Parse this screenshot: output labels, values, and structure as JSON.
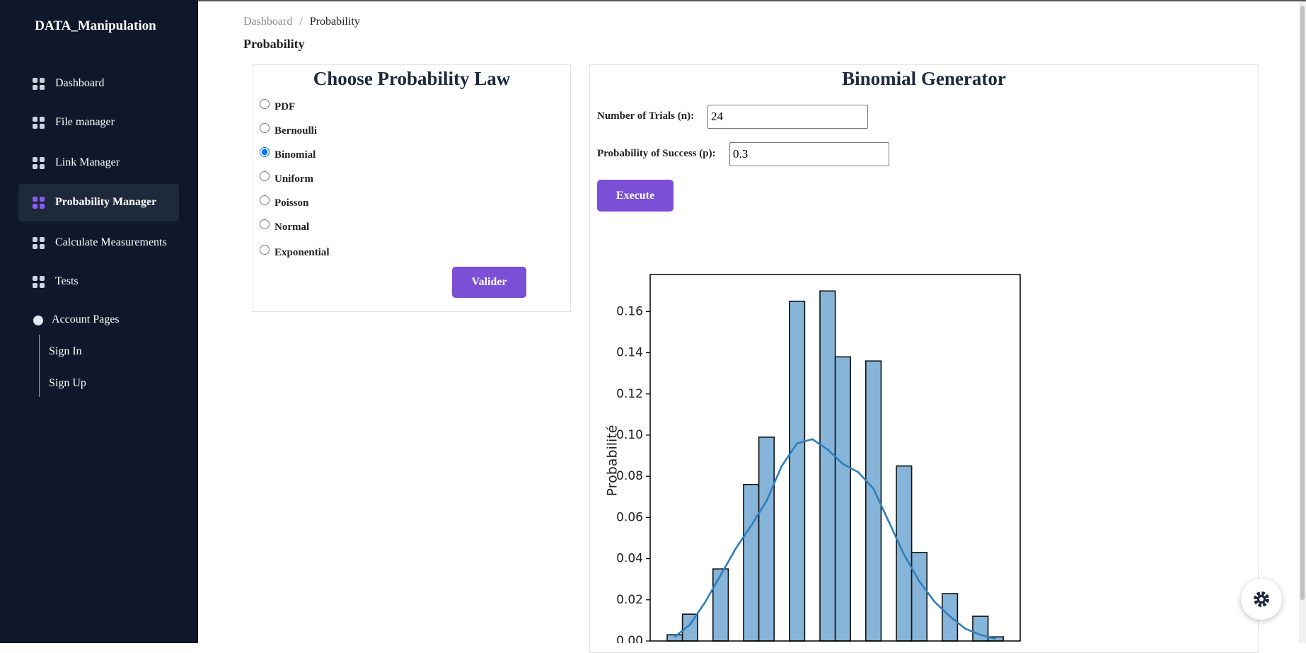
{
  "sidebar": {
    "brand": "DATA_Manipulation",
    "nav": [
      "Dashboard",
      "File manager",
      "Link Manager",
      "Probability Manager",
      "Calculate Measurements",
      "Tests"
    ],
    "active": 3,
    "account": {
      "title": "Account Pages",
      "items": [
        "Sign In",
        "Sign Up"
      ]
    }
  },
  "breadcrumb": [
    "Dashboard",
    "Probability"
  ],
  "page_title": "Probability",
  "law_card": {
    "title": "Choose Probability Law",
    "options": [
      "PDF",
      "Bernoulli",
      "Binomial",
      "Uniform",
      "Poisson",
      "Normal",
      "Exponential"
    ],
    "selected": 2,
    "button": "Valider"
  },
  "generator": {
    "title": "Binomial Generator",
    "fields": [
      {
        "label": "Number of Trials (n):",
        "value": "24"
      },
      {
        "label": "Probability of Success (p):",
        "value": "0.3"
      }
    ],
    "button": "Execute"
  },
  "chart_data": {
    "type": "histogram",
    "ylabel": "Probabilité",
    "values": [
      0.003,
      0.013,
      0,
      0.035,
      0,
      0.076,
      0.099,
      0,
      0.165,
      0,
      0.17,
      0.138,
      0,
      0.136,
      0,
      0.085,
      0.043,
      0,
      0.023,
      0,
      0.012,
      0.002
    ],
    "kde_values": [
      0.002,
      0.008,
      0.019,
      0.032,
      0.045,
      0.056,
      0.068,
      0.085,
      0.096,
      0.098,
      0.093,
      0.086,
      0.082,
      0.074,
      0.058,
      0.042,
      0.029,
      0.019,
      0.012,
      0.006,
      0.003,
      0.001
    ],
    "color": "#86b5d9",
    "line_color": "#2e7ebc",
    "ylim": [
      0,
      0.178
    ],
    "yticks": [
      {
        "value": 0,
        "label": "0.00"
      },
      0.02,
      0.04,
      0.06,
      0.08,
      {
        "value": 0.1,
        "label": "0.10"
      },
      0.12,
      0.14,
      0.16
    ]
  }
}
